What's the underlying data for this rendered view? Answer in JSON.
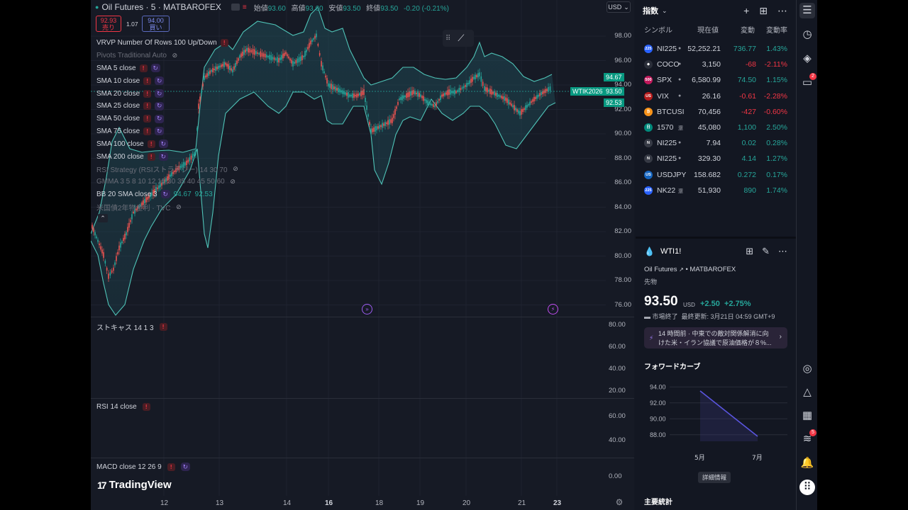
{
  "chart": {
    "symbol_title": "Oil Futures · 5 · MATBAROFEX",
    "ohlc": [
      {
        "label": "始値",
        "value": "93.60"
      },
      {
        "label": "高値",
        "value": "93.60"
      },
      {
        "label": "安値",
        "value": "93.50"
      },
      {
        "label": "終値",
        "value": "93.50"
      }
    ],
    "change": "-0.20 (-0.21%)",
    "currency": "USD",
    "sell": {
      "price": "92.93",
      "label": "売り"
    },
    "buy": {
      "price": "94.00",
      "label": "買い"
    },
    "spread": "1.07",
    "indicators": [
      {
        "name": "VRVP Number Of Rows 100 Up/Down",
        "warn": true,
        "cyc": false,
        "eye": false,
        "dim": false
      },
      {
        "name": "Pivots Traditional Auto",
        "warn": false,
        "cyc": false,
        "eye": true,
        "dim": true
      },
      {
        "name": "SMA 5 close",
        "warn": true,
        "cyc": true,
        "eye": false,
        "dim": false
      },
      {
        "name": "SMA 10 close",
        "warn": true,
        "cyc": true,
        "eye": false,
        "dim": false
      },
      {
        "name": "SMA 20 close",
        "warn": true,
        "cyc": true,
        "eye": false,
        "dim": false
      },
      {
        "name": "SMA 25 close",
        "warn": true,
        "cyc": true,
        "eye": false,
        "dim": false
      },
      {
        "name": "SMA 50 close",
        "warn": true,
        "cyc": true,
        "eye": false,
        "dim": false
      },
      {
        "name": "SMA 75 close",
        "warn": true,
        "cyc": true,
        "eye": false,
        "dim": false
      },
      {
        "name": "SMA 100 close",
        "warn": true,
        "cyc": true,
        "eye": false,
        "dim": false
      },
      {
        "name": "SMA 200 close",
        "warn": true,
        "cyc": true,
        "eye": false,
        "dim": false
      },
      {
        "name": "RSI Strategy (RSIストラテジー) 14 30 70",
        "warn": false,
        "cyc": false,
        "eye": true,
        "dim": true
      },
      {
        "name": "GMMA 3 5 8 10 12 15 30 35 40 45 50 60",
        "warn": false,
        "cyc": false,
        "eye": true,
        "dim": true
      },
      {
        "name": "BB 20 SMA close 3",
        "warn": false,
        "cyc": true,
        "eye": false,
        "dim": false,
        "values": [
          "94.67",
          "92.53"
        ]
      },
      {
        "name": "米国債2年物金利 · TVC",
        "warn": false,
        "cyc": false,
        "eye": true,
        "dim": true
      }
    ],
    "price_axis": [
      "98.00",
      "96.00",
      "94.00",
      "92.00",
      "90.00",
      "88.00",
      "86.00",
      "84.00",
      "82.00",
      "80.00",
      "78.00",
      "76.00"
    ],
    "price_tags": {
      "upper": "94.67",
      "symbol": "WTIK2026",
      "last": "93.50",
      "lower": "92.53"
    },
    "stoch": {
      "label": "ストキャス 14 1 3",
      "axis": [
        "80.00",
        "60.00",
        "40.00",
        "20.00"
      ]
    },
    "rsi": {
      "label": "RSI 14 close",
      "axis": [
        "60.00",
        "40.00"
      ]
    },
    "macd": {
      "label": "MACD close 12 26 9",
      "axis": [
        "0.00"
      ]
    },
    "time_axis": [
      {
        "label": "12",
        "bold": false
      },
      {
        "label": "13",
        "bold": false
      },
      {
        "label": "14",
        "bold": false
      },
      {
        "label": "16",
        "bold": true
      },
      {
        "label": "18",
        "bold": false
      },
      {
        "label": "19",
        "bold": false
      },
      {
        "label": "20",
        "bold": false
      },
      {
        "label": "21",
        "bold": false
      },
      {
        "label": "23",
        "bold": true
      }
    ],
    "logo": "TradingView"
  },
  "watchlist": {
    "title": "指数",
    "columns": [
      "シンボル",
      "現在値",
      "変動",
      "変動率"
    ],
    "rows": [
      {
        "icon": "225",
        "icon_color": "#2962ff",
        "symbol": "NI225",
        "dot": "●",
        "price": "52,252.21",
        "change": "736.77",
        "pct": "1.43%",
        "up": true
      },
      {
        "icon": "◆",
        "icon_color": "#2a2e39",
        "symbol": "COCO",
        "dot": "●",
        "price": "3,150",
        "change": "-68",
        "pct": "-2.11%",
        "up": false
      },
      {
        "icon": "500",
        "icon_color": "#c2185b",
        "symbol": "SPX",
        "dot": "●",
        "price": "6,580.99",
        "change": "74.50",
        "pct": "1.15%",
        "up": true
      },
      {
        "icon": "US",
        "icon_color": "#b71c1c",
        "symbol": "VIX",
        "dot": "●",
        "price": "26.16",
        "change": "-0.61",
        "pct": "-2.28%",
        "up": false
      },
      {
        "icon": "₿",
        "icon_color": "#f7931a",
        "symbol": "BTCUSI",
        "dot": "",
        "price": "70,456",
        "change": "-427",
        "pct": "-0.60%",
        "up": false
      },
      {
        "icon": "日",
        "icon_color": "#00897b",
        "symbol": "1570",
        "dot": "還",
        "price": "45,080",
        "change": "1,100",
        "pct": "2.50%",
        "up": true
      },
      {
        "icon": "N",
        "icon_color": "#363a45",
        "symbol": "NI225",
        "dot": "●",
        "price": "7.94",
        "change": "0.02",
        "pct": "0.28%",
        "up": true
      },
      {
        "icon": "N",
        "icon_color": "#363a45",
        "symbol": "NI225",
        "dot": "●",
        "price": "329.30",
        "change": "4.14",
        "pct": "1.27%",
        "up": true
      },
      {
        "icon": "US",
        "icon_color": "#1565c0",
        "symbol": "USDJPY",
        "dot": "",
        "price": "158.682",
        "change": "0.272",
        "pct": "0.17%",
        "up": true
      },
      {
        "icon": "225",
        "icon_color": "#2962ff",
        "symbol": "NK22",
        "dot": "還",
        "price": "51,930",
        "change": "890",
        "pct": "1.74%",
        "up": true
      }
    ]
  },
  "detail": {
    "symbol": "WTI1!",
    "name": "Oil Futures",
    "exchange": "MATBAROFEX",
    "type": "先物",
    "price": "93.50",
    "currency": "USD",
    "change": "+2.50",
    "change_pct": "+2.75%",
    "status": "市場終了",
    "updated": "最終更新: 3月21日 04:59 GMT+9",
    "news": "14 時間前 · 中東での敵対関係解消に向けた米・イラン協議で原油価格が８%...",
    "forward_title": "フォワードカーブ",
    "forward_curve": {
      "type": "area",
      "categories": [
        "5月",
        "7月"
      ],
      "values": [
        93.5,
        87.8
      ],
      "y_ticks": [
        "94.00",
        "92.00",
        "90.00",
        "88.00"
      ],
      "ylim": [
        87.0,
        95.0
      ]
    },
    "detail_button": "詳細情報",
    "stats_title": "主要統計"
  },
  "rail": {
    "badges": {
      "chat": "2",
      "feed": "5"
    }
  }
}
